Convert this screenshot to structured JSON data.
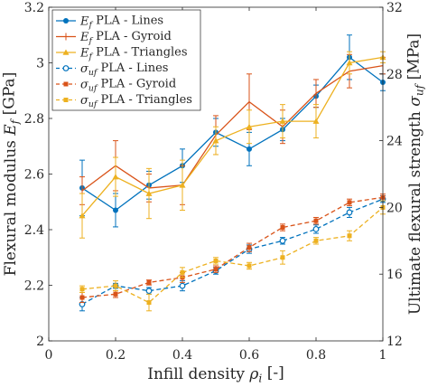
{
  "chart_data": {
    "type": "line",
    "xlabel": "Infill density ρ_i [-]",
    "ylabel_left": "Flexural modulus E_f [GPa]",
    "ylabel_right": "Ultimate flexural strength σ_uf [MPa]",
    "xlim": [
      0,
      1
    ],
    "ylim_left": [
      2,
      3.2
    ],
    "ylim_right": [
      12,
      32
    ],
    "xticks": [
      "0",
      "0.2",
      "0.4",
      "0.6",
      "0.8",
      "1"
    ],
    "yticks_left": [
      "2",
      "2.2",
      "2.4",
      "2.6",
      "2.8",
      "3",
      "3.2"
    ],
    "yticks_right": [
      "12",
      "16",
      "20",
      "24",
      "28",
      "32"
    ],
    "grid": false,
    "legend_position": "top-left",
    "series": [
      {
        "name": "E_f PLA - Lines",
        "axis": "left",
        "style": "solid",
        "marker": "circle-filled",
        "color": "#0072BD",
        "x": [
          0.1,
          0.2,
          0.3,
          0.4,
          0.5,
          0.6,
          0.7,
          0.8,
          0.9,
          1.0
        ],
        "y": [
          2.55,
          2.47,
          2.56,
          2.63,
          2.75,
          2.69,
          2.76,
          2.88,
          3.02,
          2.93
        ],
        "err": [
          0.1,
          0.06,
          0.05,
          0.06,
          0.05,
          0.06,
          0.04,
          0.04,
          0.08,
          0.03
        ]
      },
      {
        "name": "E_f PLA - Gyroid",
        "axis": "left",
        "style": "solid",
        "marker": "none",
        "color": "#D95319",
        "x": [
          0.1,
          0.2,
          0.3,
          0.4,
          0.5,
          0.6,
          0.7,
          0.8,
          0.9,
          1.0
        ],
        "y": [
          2.54,
          2.63,
          2.55,
          2.56,
          2.74,
          2.86,
          2.77,
          2.89,
          2.97,
          2.99
        ],
        "err": [
          0.05,
          0.09,
          0.05,
          0.07,
          0.07,
          0.1,
          0.06,
          0.05,
          0.06,
          0.03
        ]
      },
      {
        "name": "E_f PLA - Triangles",
        "axis": "left",
        "style": "solid",
        "marker": "triangle-filled",
        "color": "#EDB120",
        "x": [
          0.1,
          0.2,
          0.3,
          0.4,
          0.5,
          0.6,
          0.7,
          0.8,
          0.9,
          1.0
        ],
        "y": [
          2.45,
          2.59,
          2.53,
          2.56,
          2.72,
          2.77,
          2.79,
          2.79,
          3.0,
          3.02
        ],
        "err": [
          0.08,
          0.07,
          0.09,
          0.09,
          0.05,
          0.06,
          0.06,
          0.06,
          0.04,
          0.02
        ]
      },
      {
        "name": "σ_uf PLA - Lines",
        "axis": "right",
        "style": "dashed",
        "marker": "circle-open",
        "color": "#0072BD",
        "x": [
          0.1,
          0.2,
          0.3,
          0.4,
          0.5,
          0.6,
          0.7,
          0.8,
          0.9,
          1.0
        ],
        "y": [
          14.2,
          15.3,
          15.0,
          15.3,
          16.2,
          17.5,
          18.0,
          18.7,
          19.7,
          20.5
        ],
        "err": [
          0.4,
          0.15,
          0.2,
          0.3,
          0.2,
          0.25,
          0.2,
          0.25,
          0.3,
          0.2
        ]
      },
      {
        "name": "σ_uf PLA - Gyroid",
        "axis": "right",
        "style": "dashed",
        "marker": "square-filled",
        "color": "#D95319",
        "x": [
          0.1,
          0.2,
          0.3,
          0.4,
          0.5,
          0.6,
          0.7,
          0.8,
          0.9,
          1.0
        ],
        "y": [
          14.6,
          14.8,
          15.5,
          15.8,
          16.3,
          17.6,
          18.8,
          19.2,
          20.3,
          20.6
        ],
        "err": [
          0.3,
          0.2,
          0.15,
          0.3,
          0.2,
          0.25,
          0.2,
          0.2,
          0.2,
          0.2
        ]
      },
      {
        "name": "σ_uf PLA - Triangles",
        "axis": "right",
        "style": "dashed",
        "marker": "square-filled",
        "color": "#EDB120",
        "x": [
          0.1,
          0.2,
          0.3,
          0.4,
          0.5,
          0.6,
          0.7,
          0.8,
          0.9,
          1.0
        ],
        "y": [
          15.1,
          15.3,
          14.3,
          16.1,
          16.8,
          16.5,
          17.0,
          18.0,
          18.3,
          20.0
        ],
        "err": [
          0.2,
          0.3,
          0.5,
          0.3,
          0.2,
          0.2,
          0.4,
          0.2,
          0.3,
          0.4
        ]
      }
    ]
  }
}
